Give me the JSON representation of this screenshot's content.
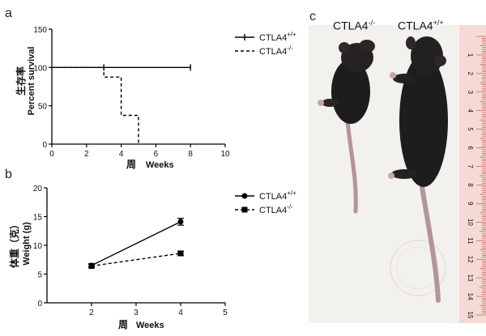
{
  "panels": {
    "a": "a",
    "b": "b",
    "c": "c"
  },
  "chart_data": [
    {
      "type": "line",
      "panel": "a",
      "ylabel_cn": "生存率",
      "ylabel_en": "Percent survival",
      "xlabel_cn": "周",
      "xlabel_en": "Weeks",
      "xlim": [
        0,
        10
      ],
      "ylim": [
        0,
        150
      ],
      "xticks": [
        "0",
        "2",
        "4",
        "6",
        "8",
        "10"
      ],
      "yticks": [
        "0",
        "50",
        "100",
        "150"
      ],
      "legend_position": "right",
      "series": [
        {
          "name": "CTLA4",
          "superscript": "+/+",
          "style": "solid",
          "steps": [
            [
              0,
              100
            ],
            [
              8,
              100
            ]
          ],
          "censor_marks": [
            [
              8,
              100
            ]
          ]
        },
        {
          "name": "CTLA4",
          "superscript": "-/-",
          "style": "dashed",
          "steps": [
            [
              0,
              100
            ],
            [
              3,
              100
            ],
            [
              3,
              87.5
            ],
            [
              4,
              87.5
            ],
            [
              4,
              37.5
            ],
            [
              5,
              37.5
            ],
            [
              5,
              0
            ]
          ],
          "censor_marks": [
            [
              3,
              100
            ]
          ]
        }
      ]
    },
    {
      "type": "line",
      "panel": "b",
      "ylabel_cn": "体重（克）",
      "ylabel_en": "Weight (g)",
      "xlabel_cn": "周",
      "xlabel_en": "Weeks",
      "xlim": [
        1,
        5
      ],
      "ylim": [
        0,
        20
      ],
      "xticks": [
        "2",
        "3",
        "4",
        "5"
      ],
      "yticks": [
        "0",
        "5",
        "10",
        "15",
        "20"
      ],
      "legend_position": "right",
      "series": [
        {
          "name": "CTLA4",
          "superscript": "+/+",
          "style": "solid",
          "marker": "circle",
          "x": [
            2,
            4
          ],
          "y": [
            6.5,
            14.1
          ],
          "err": [
            0.3,
            0.6
          ]
        },
        {
          "name": "CTLA4",
          "superscript": "-/-",
          "style": "dashed",
          "marker": "square",
          "x": [
            2,
            4
          ],
          "y": [
            6.4,
            8.6
          ],
          "err": [
            0.3,
            0.4
          ]
        }
      ]
    }
  ],
  "photo": {
    "label_left": "CTLA4",
    "label_left_sup": "-/-",
    "label_right": "CTLA4",
    "label_right_sup": "+/+",
    "ruler_numbers": [
      "1",
      "2",
      "3",
      "4",
      "5",
      "6",
      "7",
      "8",
      "9",
      "10",
      "11",
      "12",
      "13",
      "14",
      "15"
    ],
    "colors": {
      "background": "#f3f1ee",
      "mouse": "#1e1c1d",
      "tail": "#b49494",
      "ruler": "#f4d9d5",
      "ruler_ink": "#c2433f"
    }
  }
}
